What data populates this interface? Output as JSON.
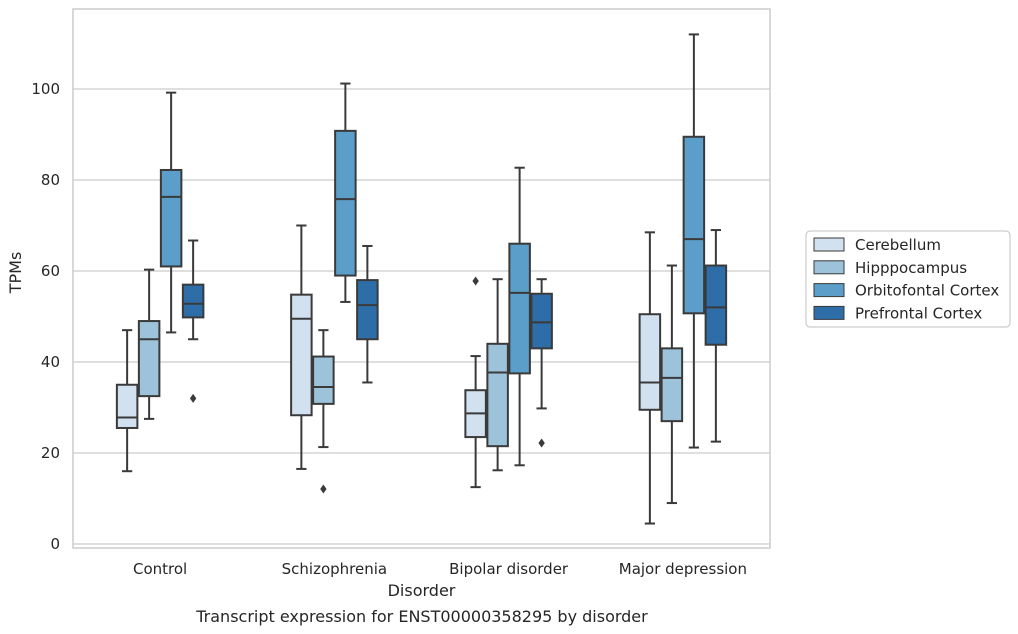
{
  "caption": "Transcript expression for ENST00000358295 by disorder",
  "chart_data": {
    "type": "box",
    "xlabel": "Disorder",
    "ylabel": "TPMs",
    "ylim": [
      -1,
      117
    ],
    "yticks": [
      0,
      20,
      40,
      60,
      80,
      100
    ],
    "grid": true,
    "legend_position": "right",
    "categories": [
      "Control",
      "Schizophrenia",
      "Bipolar disorder",
      "Major depression"
    ],
    "series": [
      {
        "name": "Cerebellum",
        "color": "#d1e1ef",
        "boxes": [
          {
            "whisker_low": 16,
            "q1": 25.5,
            "median": 27.8,
            "q3": 35,
            "whisker_high": 47,
            "outliers": []
          },
          {
            "whisker_low": 16.5,
            "q1": 28.3,
            "median": 49.5,
            "q3": 54.8,
            "whisker_high": 70,
            "outliers": []
          },
          {
            "whisker_low": 12.5,
            "q1": 23.5,
            "median": 28.7,
            "q3": 33.8,
            "whisker_high": 41.3,
            "outliers": [
              57.8
            ]
          },
          {
            "whisker_low": 4.5,
            "q1": 29.5,
            "median": 35.5,
            "q3": 50.5,
            "whisker_high": 68.5,
            "outliers": []
          }
        ]
      },
      {
        "name": "Hipppocampus",
        "color": "#9cc3da",
        "boxes": [
          {
            "whisker_low": 27.5,
            "q1": 32.5,
            "median": 45,
            "q3": 49,
            "whisker_high": 60.3,
            "outliers": []
          },
          {
            "whisker_low": 21.3,
            "q1": 30.8,
            "median": 34.5,
            "q3": 41.2,
            "whisker_high": 47,
            "outliers": [
              12.1
            ]
          },
          {
            "whisker_low": 16.2,
            "q1": 21.5,
            "median": 37.7,
            "q3": 44,
            "whisker_high": 58.2,
            "outliers": []
          },
          {
            "whisker_low": 9,
            "q1": 27,
            "median": 36.5,
            "q3": 43,
            "whisker_high": 61.2,
            "outliers": []
          }
        ]
      },
      {
        "name": "Orbitofontal Cortex",
        "color": "#5b9ec9",
        "boxes": [
          {
            "whisker_low": 46.5,
            "q1": 61,
            "median": 76.3,
            "q3": 82.2,
            "whisker_high": 99.2,
            "outliers": []
          },
          {
            "whisker_low": 53.2,
            "q1": 59,
            "median": 75.8,
            "q3": 90.8,
            "whisker_high": 101.2,
            "outliers": []
          },
          {
            "whisker_low": 17.3,
            "q1": 37.5,
            "median": 55.2,
            "q3": 66,
            "whisker_high": 82.7,
            "outliers": []
          },
          {
            "whisker_low": 21.2,
            "q1": 50.7,
            "median": 67,
            "q3": 89.5,
            "whisker_high": 112,
            "outliers": []
          }
        ]
      },
      {
        "name": "Prefrontal Cortex",
        "color": "#2d6ea9",
        "boxes": [
          {
            "whisker_low": 45,
            "q1": 49.8,
            "median": 52.8,
            "q3": 57,
            "whisker_high": 66.7,
            "outliers": [
              32
            ]
          },
          {
            "whisker_low": 35.5,
            "q1": 45,
            "median": 52.5,
            "q3": 58,
            "whisker_high": 65.5,
            "outliers": []
          },
          {
            "whisker_low": 29.8,
            "q1": 43,
            "median": 48.7,
            "q3": 55,
            "whisker_high": 58.2,
            "outliers": [
              22.2
            ]
          },
          {
            "whisker_low": 22.5,
            "q1": 43.8,
            "median": 52,
            "q3": 61.2,
            "whisker_high": 69,
            "outliers": []
          }
        ]
      }
    ]
  }
}
